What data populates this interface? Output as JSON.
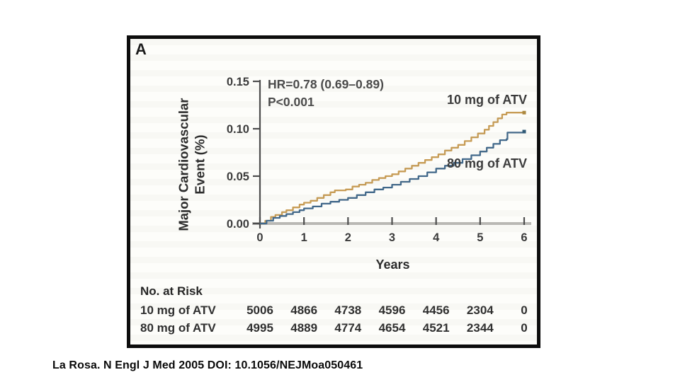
{
  "panel": {
    "label": "A"
  },
  "annotation": {
    "hr": "HR=0.78 (0.69–0.89)",
    "p": "P<0.001"
  },
  "colors": {
    "border": "#0d0d0d",
    "axis": "#4d4d4d",
    "axis_gray": "#b9b8b4",
    "text_dark": "#2b2b2b",
    "annotation_text": "#4a4a4a",
    "series_10mg": "#c79c55",
    "series_80mg": "#41688a"
  },
  "chart_data": {
    "type": "line",
    "title": "",
    "xlabel": "Years",
    "ylabel": "Major Cardiovascular Event (%)",
    "ylabel_line1": "Major Cardiovascular",
    "ylabel_line2": "Event (%)",
    "xlim": [
      0,
      6
    ],
    "ylim": [
      0,
      0.15
    ],
    "xtick_values": [
      0,
      1,
      2,
      3,
      4,
      5,
      6
    ],
    "xticks": [
      "0",
      "1",
      "2",
      "3",
      "4",
      "5",
      "6"
    ],
    "ytick_values": [
      0,
      0.05,
      0.1,
      0.15
    ],
    "yticks": [
      "0.00",
      "0.05",
      "0.10",
      "0.15"
    ],
    "grid": false,
    "legend_position": "labels-at-line-ends",
    "series": [
      {
        "name": "10 mg of ATV",
        "color": "#c79c55",
        "marker_color": "#ab883f",
        "points": [
          [
            0,
            0
          ],
          [
            0.12,
            0.003
          ],
          [
            0.25,
            0.007
          ],
          [
            0.35,
            0.009
          ],
          [
            0.5,
            0.012
          ],
          [
            0.6,
            0.014
          ],
          [
            0.75,
            0.017
          ],
          [
            0.9,
            0.02
          ],
          [
            1.0,
            0.022
          ],
          [
            1.15,
            0.024
          ],
          [
            1.3,
            0.027
          ],
          [
            1.45,
            0.03
          ],
          [
            1.6,
            0.033
          ],
          [
            1.7,
            0.035
          ],
          [
            1.95,
            0.036
          ],
          [
            2.1,
            0.039
          ],
          [
            2.25,
            0.041
          ],
          [
            2.4,
            0.043
          ],
          [
            2.55,
            0.046
          ],
          [
            2.7,
            0.048
          ],
          [
            2.85,
            0.05
          ],
          [
            3.0,
            0.052
          ],
          [
            3.15,
            0.055
          ],
          [
            3.3,
            0.058
          ],
          [
            3.45,
            0.061
          ],
          [
            3.6,
            0.064
          ],
          [
            3.75,
            0.067
          ],
          [
            3.9,
            0.07
          ],
          [
            4.05,
            0.073
          ],
          [
            4.2,
            0.077
          ],
          [
            4.35,
            0.08
          ],
          [
            4.5,
            0.083
          ],
          [
            4.65,
            0.087
          ],
          [
            4.8,
            0.091
          ],
          [
            4.95,
            0.095
          ],
          [
            5.1,
            0.099
          ],
          [
            5.2,
            0.103
          ],
          [
            5.3,
            0.107
          ],
          [
            5.4,
            0.111
          ],
          [
            5.5,
            0.115
          ],
          [
            5.6,
            0.117
          ],
          [
            6.0,
            0.117
          ]
        ]
      },
      {
        "name": "80 mg of ATV",
        "color": "#41688a",
        "marker_color": "#2f5976",
        "points": [
          [
            0,
            0
          ],
          [
            0.15,
            0.003
          ],
          [
            0.3,
            0.006
          ],
          [
            0.45,
            0.008
          ],
          [
            0.6,
            0.01
          ],
          [
            0.75,
            0.012
          ],
          [
            0.9,
            0.014
          ],
          [
            1.0,
            0.016
          ],
          [
            1.2,
            0.018
          ],
          [
            1.4,
            0.021
          ],
          [
            1.6,
            0.023
          ],
          [
            1.8,
            0.025
          ],
          [
            2.0,
            0.027
          ],
          [
            2.2,
            0.03
          ],
          [
            2.4,
            0.033
          ],
          [
            2.6,
            0.036
          ],
          [
            2.8,
            0.038
          ],
          [
            3.0,
            0.041
          ],
          [
            3.2,
            0.044
          ],
          [
            3.4,
            0.047
          ],
          [
            3.6,
            0.05
          ],
          [
            3.8,
            0.054
          ],
          [
            4.0,
            0.058
          ],
          [
            4.2,
            0.061
          ],
          [
            4.4,
            0.064
          ],
          [
            4.6,
            0.068
          ],
          [
            4.8,
            0.072
          ],
          [
            5.0,
            0.076
          ],
          [
            5.15,
            0.08
          ],
          [
            5.3,
            0.084
          ],
          [
            5.45,
            0.088
          ],
          [
            5.6,
            0.089
          ],
          [
            5.62,
            0.096
          ],
          [
            5.9,
            0.096
          ],
          [
            6.0,
            0.097
          ]
        ]
      }
    ]
  },
  "risk_table": {
    "title": "No. at Risk",
    "rows": [
      {
        "label": "10 mg of ATV",
        "values": [
          "5006",
          "4866",
          "4738",
          "4596",
          "4456",
          "2304",
          "0"
        ]
      },
      {
        "label": "80 mg of ATV",
        "values": [
          "4995",
          "4889",
          "4774",
          "4654",
          "4521",
          "2344",
          "0"
        ]
      }
    ]
  },
  "citation": "La Rosa. N Engl J Med 2005 DOI: 10.1056/NEJMoa050461"
}
